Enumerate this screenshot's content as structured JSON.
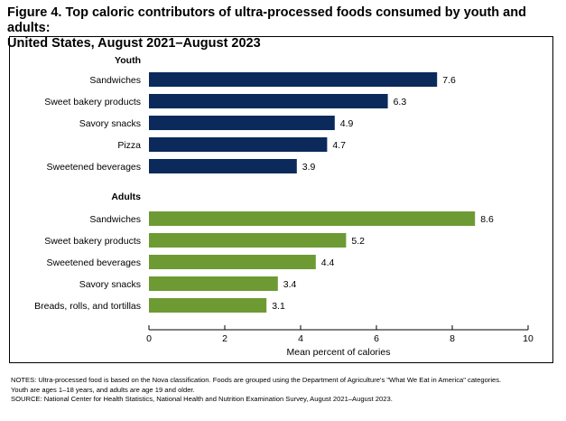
{
  "title_line1": "Figure 4. Top caloric contributors of ultra-processed foods consumed by youth and adults:",
  "title_line2": "United States, August 2021–August 2023",
  "chart_data": {
    "type": "bar",
    "orientation": "horizontal",
    "xlabel": "Mean percent of calories",
    "xlim": [
      0,
      10
    ],
    "xticks": [
      0,
      2,
      4,
      6,
      8,
      10
    ],
    "groups": [
      {
        "name": "Youth",
        "color": "#0b2a5b",
        "categories": [
          "Sandwiches",
          "Sweet bakery products",
          "Savory snacks",
          "Pizza",
          "Sweetened beverages"
        ],
        "values": [
          7.6,
          6.3,
          4.9,
          4.7,
          3.9
        ]
      },
      {
        "name": "Adults",
        "color": "#6e9a34",
        "categories": [
          "Sandwiches",
          "Sweet bakery products",
          "Sweetened beverages",
          "Savory snacks",
          "Breads, rolls, and tortillas"
        ],
        "values": [
          8.6,
          5.2,
          4.4,
          3.4,
          3.1
        ]
      }
    ]
  },
  "notes": {
    "line1": "NOTES: Ultra-processed food is based on the Nova classification. Foods are grouped using the Department of Agriculture's \"What We Eat in America\" categories.",
    "line2": "Youth are ages 1–18 years, and adults are age 19 and older.",
    "line3": "SOURCE: National Center for Health Statistics, National Health and Nutrition Examination Survey, August 2021–August 2023."
  }
}
